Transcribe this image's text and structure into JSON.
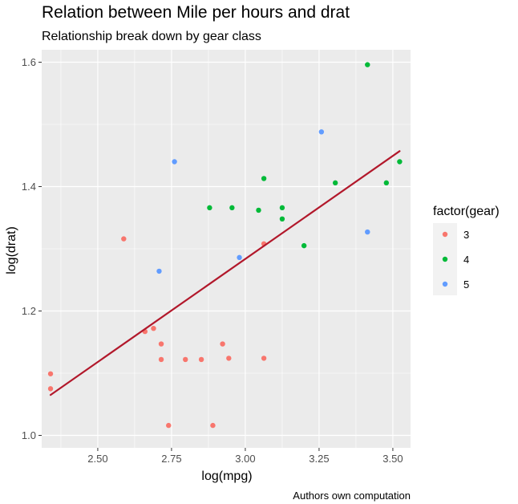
{
  "chart_data": {
    "type": "scatter",
    "title": "Relation between Mile per hours and drat",
    "subtitle": "Relationship break down by gear class",
    "xlabel": "log(mpg)",
    "ylabel": "log(drat)",
    "caption": "Authors own computation",
    "xlim": [
      2.31,
      3.56
    ],
    "ylim": [
      0.98,
      1.62
    ],
    "x_ticks": [
      2.5,
      2.75,
      3.0,
      3.25,
      3.5
    ],
    "x_tick_labels": [
      "2.50",
      "2.75",
      "3.00",
      "3.25",
      "3.50"
    ],
    "y_ticks": [
      1.0,
      1.2,
      1.4,
      1.6
    ],
    "y_tick_labels": [
      "1.0",
      "1.2",
      "1.4",
      "1.6"
    ],
    "grid": true,
    "panel_background": "#ebebeb",
    "legend": {
      "title": "factor(gear)",
      "position": "right"
    },
    "series": [
      {
        "name": "3",
        "color": "#f8766d",
        "points": [
          [
            2.34,
            1.099
          ],
          [
            2.34,
            1.075
          ],
          [
            2.588,
            1.316
          ],
          [
            2.66,
            1.167
          ],
          [
            2.689,
            1.172
          ],
          [
            2.715,
            1.147
          ],
          [
            2.715,
            1.122
          ],
          [
            2.74,
            1.016
          ],
          [
            2.797,
            1.122
          ],
          [
            2.851,
            1.122
          ],
          [
            2.89,
            1.016
          ],
          [
            2.923,
            1.147
          ],
          [
            2.944,
            1.124
          ],
          [
            3.063,
            1.124
          ],
          [
            3.063,
            1.308
          ]
        ]
      },
      {
        "name": "4",
        "color": "#00ba38",
        "points": [
          [
            2.879,
            1.366
          ],
          [
            2.955,
            1.366
          ],
          [
            3.045,
            1.362
          ],
          [
            3.063,
            1.413
          ],
          [
            3.125,
            1.366
          ],
          [
            3.125,
            1.348
          ],
          [
            3.199,
            1.305
          ],
          [
            3.305,
            1.406
          ],
          [
            3.414,
            1.596
          ],
          [
            3.478,
            1.406
          ],
          [
            3.523,
            1.44
          ]
        ]
      },
      {
        "name": "5",
        "color": "#619cff",
        "points": [
          [
            2.708,
            1.264
          ],
          [
            2.76,
            1.44
          ],
          [
            2.98,
            1.286
          ],
          [
            3.258,
            1.488
          ],
          [
            3.414,
            1.327
          ]
        ]
      }
    ],
    "trend_line": {
      "color": "#b2182b",
      "x": [
        2.34,
        3.523
      ],
      "y": [
        1.065,
        1.457
      ]
    }
  }
}
